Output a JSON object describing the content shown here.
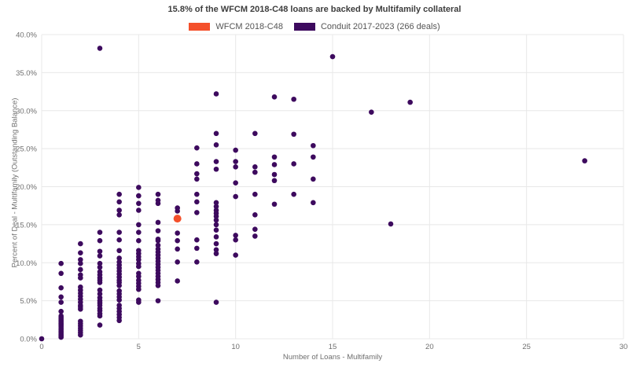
{
  "title": "15.8% of the WFCM 2018-C48 loans are backed by Multifamily collateral",
  "legend": [
    {
      "label": "WFCM 2018-C48",
      "color": "#F4502B"
    },
    {
      "label": "Conduit 2017-2023 (266 deals)",
      "color": "#3D0A5E"
    }
  ],
  "colors": {
    "highlight": "#F4502B",
    "conduit": "#3D0A5E",
    "grid": "#E8E8E8",
    "tick_text": "#6F6F6F",
    "title_text": "#3D3D3D"
  },
  "chart_data": {
    "type": "scatter",
    "title": "15.8% of the WFCM 2018-C48 loans are backed by Multifamily collateral",
    "xlabel": "Number of Loans - Multifamily",
    "ylabel": "Percent of Deal - Multifamily (Outstanding Balance)",
    "xlim": [
      0,
      30
    ],
    "ylim": [
      0,
      40
    ],
    "x_ticks": [
      0,
      5,
      10,
      15,
      20,
      25,
      30
    ],
    "x_tick_labels": [
      "0",
      "5",
      "10",
      "15",
      "20",
      "25",
      "30"
    ],
    "y_ticks": [
      0,
      5,
      10,
      15,
      20,
      25,
      30,
      35,
      40
    ],
    "y_tick_labels": [
      "0.0%",
      "5.0%",
      "10.0%",
      "15.0%",
      "20.0%",
      "25.0%",
      "30.0%",
      "35.0%",
      "40.0%"
    ],
    "grid": true,
    "legend_position": "top-center",
    "series": [
      {
        "name": "Conduit 2017-2023 (266 deals)",
        "color": "#3D0A5E",
        "marker_radius": 3.3,
        "points": [
          [
            0,
            0.0
          ],
          [
            1,
            9.9
          ],
          [
            1,
            8.6
          ],
          [
            1,
            6.7
          ],
          [
            1,
            5.5
          ],
          [
            1,
            4.8
          ],
          [
            1,
            3.6
          ],
          [
            1,
            3.0
          ],
          [
            1,
            2.8
          ],
          [
            1,
            2.6
          ],
          [
            1,
            2.4
          ],
          [
            1,
            2.2
          ],
          [
            1,
            2.0
          ],
          [
            1,
            1.8
          ],
          [
            1,
            1.6
          ],
          [
            1,
            1.4
          ],
          [
            1,
            1.2
          ],
          [
            1,
            1.0
          ],
          [
            1,
            0.8
          ],
          [
            1,
            0.6
          ],
          [
            1,
            0.4
          ],
          [
            1,
            0.2
          ],
          [
            2,
            12.5
          ],
          [
            2,
            11.3
          ],
          [
            2,
            10.4
          ],
          [
            2,
            9.9
          ],
          [
            2,
            9.1
          ],
          [
            2,
            8.4
          ],
          [
            2,
            8.0
          ],
          [
            2,
            6.8
          ],
          [
            2,
            6.4
          ],
          [
            2,
            6.0
          ],
          [
            2,
            5.6
          ],
          [
            2,
            5.2
          ],
          [
            2,
            4.8
          ],
          [
            2,
            4.4
          ],
          [
            2,
            4.2
          ],
          [
            2,
            3.9
          ],
          [
            2,
            2.3
          ],
          [
            2,
            2.0
          ],
          [
            2,
            1.7
          ],
          [
            2,
            1.4
          ],
          [
            2,
            1.1
          ],
          [
            2,
            0.8
          ],
          [
            2,
            0.5
          ],
          [
            3,
            38.2
          ],
          [
            3,
            14.0
          ],
          [
            3,
            12.9
          ],
          [
            3,
            11.5
          ],
          [
            3,
            10.9
          ],
          [
            3,
            9.9
          ],
          [
            3,
            9.4
          ],
          [
            3,
            8.8
          ],
          [
            3,
            8.4
          ],
          [
            3,
            8.0
          ],
          [
            3,
            7.7
          ],
          [
            3,
            7.4
          ],
          [
            3,
            6.4
          ],
          [
            3,
            5.9
          ],
          [
            3,
            5.4
          ],
          [
            3,
            5.0
          ],
          [
            3,
            4.7
          ],
          [
            3,
            4.4
          ],
          [
            3,
            4.0
          ],
          [
            3,
            3.7
          ],
          [
            3,
            3.3
          ],
          [
            3,
            3.0
          ],
          [
            3,
            1.8
          ],
          [
            4,
            19.0
          ],
          [
            4,
            18.0
          ],
          [
            4,
            16.9
          ],
          [
            4,
            16.3
          ],
          [
            4,
            14.0
          ],
          [
            4,
            13.0
          ],
          [
            4,
            11.6
          ],
          [
            4,
            10.6
          ],
          [
            4,
            10.1
          ],
          [
            4,
            9.7
          ],
          [
            4,
            9.3
          ],
          [
            4,
            8.9
          ],
          [
            4,
            8.5
          ],
          [
            4,
            8.1
          ],
          [
            4,
            7.7
          ],
          [
            4,
            7.4
          ],
          [
            4,
            7.0
          ],
          [
            4,
            6.3
          ],
          [
            4,
            5.9
          ],
          [
            4,
            5.5
          ],
          [
            4,
            5.1
          ],
          [
            4,
            4.4
          ],
          [
            4,
            4.0
          ],
          [
            4,
            3.6
          ],
          [
            4,
            3.2
          ],
          [
            4,
            2.8
          ],
          [
            4,
            2.4
          ],
          [
            5,
            19.9
          ],
          [
            5,
            18.8
          ],
          [
            5,
            17.8
          ],
          [
            5,
            16.9
          ],
          [
            5,
            15.0
          ],
          [
            5,
            14.0
          ],
          [
            5,
            12.9
          ],
          [
            5,
            11.6
          ],
          [
            5,
            11.2
          ],
          [
            5,
            10.8
          ],
          [
            5,
            10.4
          ],
          [
            5,
            9.9
          ],
          [
            5,
            9.5
          ],
          [
            5,
            8.6
          ],
          [
            5,
            8.2
          ],
          [
            5,
            7.7
          ],
          [
            5,
            7.3
          ],
          [
            5,
            6.9
          ],
          [
            5,
            6.5
          ],
          [
            5,
            5.1
          ],
          [
            5,
            4.8
          ],
          [
            6,
            19.0
          ],
          [
            6,
            18.2
          ],
          [
            6,
            17.8
          ],
          [
            6,
            15.3
          ],
          [
            6,
            14.2
          ],
          [
            6,
            13.1
          ],
          [
            6,
            12.9
          ],
          [
            6,
            12.3
          ],
          [
            6,
            11.8
          ],
          [
            6,
            11.4
          ],
          [
            6,
            11.0
          ],
          [
            6,
            10.6
          ],
          [
            6,
            10.2
          ],
          [
            6,
            9.8
          ],
          [
            6,
            9.4
          ],
          [
            6,
            9.0
          ],
          [
            6,
            8.6
          ],
          [
            6,
            8.2
          ],
          [
            6,
            7.8
          ],
          [
            6,
            7.4
          ],
          [
            6,
            7.0
          ],
          [
            6,
            5.0
          ],
          [
            7,
            17.2
          ],
          [
            7,
            16.8
          ],
          [
            7,
            13.9
          ],
          [
            7,
            12.9
          ],
          [
            7,
            11.8
          ],
          [
            7,
            10.1
          ],
          [
            7,
            7.6
          ],
          [
            8,
            25.1
          ],
          [
            8,
            23.0
          ],
          [
            8,
            21.7
          ],
          [
            8,
            21.0
          ],
          [
            8,
            19.0
          ],
          [
            8,
            18.0
          ],
          [
            8,
            16.6
          ],
          [
            8,
            13.0
          ],
          [
            8,
            11.9
          ],
          [
            8,
            10.1
          ],
          [
            9,
            32.2
          ],
          [
            9,
            27.0
          ],
          [
            9,
            25.5
          ],
          [
            9,
            23.3
          ],
          [
            9,
            22.3
          ],
          [
            9,
            17.9
          ],
          [
            9,
            17.4
          ],
          [
            9,
            16.9
          ],
          [
            9,
            16.5
          ],
          [
            9,
            16.1
          ],
          [
            9,
            15.6
          ],
          [
            9,
            15.0
          ],
          [
            9,
            14.3
          ],
          [
            9,
            13.4
          ],
          [
            9,
            12.5
          ],
          [
            9,
            11.7
          ],
          [
            9,
            11.2
          ],
          [
            9,
            4.8
          ],
          [
            10,
            24.8
          ],
          [
            10,
            23.3
          ],
          [
            10,
            22.6
          ],
          [
            10,
            20.5
          ],
          [
            10,
            18.7
          ],
          [
            10,
            13.6
          ],
          [
            10,
            13.0
          ],
          [
            10,
            11.0
          ],
          [
            11,
            27.0
          ],
          [
            11,
            22.6
          ],
          [
            11,
            21.9
          ],
          [
            11,
            19.0
          ],
          [
            11,
            16.3
          ],
          [
            11,
            14.4
          ],
          [
            11,
            13.5
          ],
          [
            12,
            31.8
          ],
          [
            12,
            23.9
          ],
          [
            12,
            22.9
          ],
          [
            12,
            21.6
          ],
          [
            12,
            20.8
          ],
          [
            12,
            17.7
          ],
          [
            13,
            31.5
          ],
          [
            13,
            26.9
          ],
          [
            13,
            23.0
          ],
          [
            13,
            19.0
          ],
          [
            14,
            25.4
          ],
          [
            14,
            23.9
          ],
          [
            14,
            21.0
          ],
          [
            14,
            17.9
          ],
          [
            15,
            37.1
          ],
          [
            17,
            29.8
          ],
          [
            18,
            15.1
          ],
          [
            19,
            31.1
          ],
          [
            28,
            23.4
          ]
        ]
      },
      {
        "name": "WFCM 2018-C48",
        "color": "#F4502B",
        "marker_radius": 5,
        "points": [
          [
            7,
            15.8
          ]
        ]
      }
    ]
  }
}
